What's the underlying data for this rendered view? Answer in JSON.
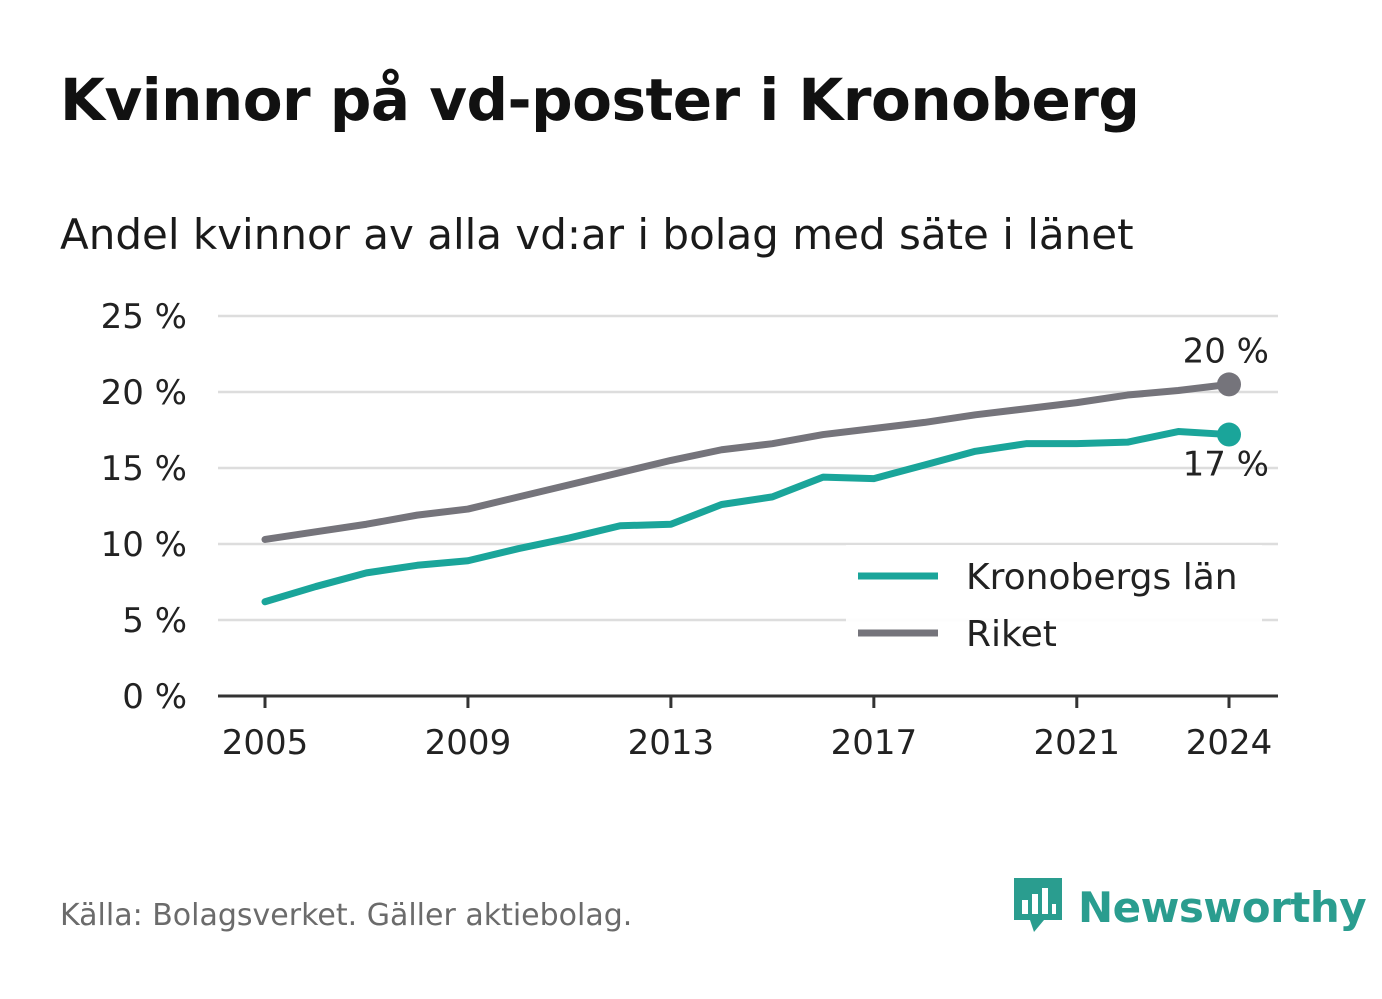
{
  "title": "Kvinnor på vd-poster i Kronoberg",
  "subtitle": "Andel kvinnor av alla vd:ar i bolag med säte i länet",
  "source": "Källa: Bolagsverket. Gäller aktiebolag.",
  "brand": {
    "name": "Newsworthy",
    "icon": "newsworthy-logo-icon"
  },
  "colors": {
    "kronoberg": "#1aa59a",
    "riket": "#75747b",
    "grid": "#dddddd",
    "axis": "#333333"
  },
  "chart_data": {
    "type": "line",
    "title": "Kvinnor på vd-poster i Kronoberg",
    "subtitle": "Andel kvinnor av alla vd:ar i bolag med säte i länet",
    "x": [
      2005,
      2006,
      2007,
      2008,
      2009,
      2010,
      2011,
      2012,
      2013,
      2014,
      2015,
      2016,
      2017,
      2018,
      2019,
      2020,
      2021,
      2022,
      2023,
      2024
    ],
    "x_ticks": [
      2005,
      2009,
      2013,
      2017,
      2021,
      2024
    ],
    "y_ticks": [
      0,
      5,
      10,
      15,
      20,
      25
    ],
    "y_tick_labels": [
      "0 %",
      "5 %",
      "10 %",
      "15 %",
      "20 %",
      "25 %"
    ],
    "ylim": [
      0,
      25
    ],
    "grid": true,
    "legend_position": "bottom-right",
    "series": [
      {
        "name": "Kronobergs län",
        "color": "#1aa59a",
        "values": [
          6.2,
          7.2,
          8.1,
          8.6,
          8.9,
          9.7,
          10.4,
          11.2,
          11.3,
          12.6,
          13.1,
          14.4,
          14.3,
          15.2,
          16.1,
          16.6,
          16.6,
          16.7,
          17.4,
          17.2
        ],
        "end_label": "17 %"
      },
      {
        "name": "Riket",
        "color": "#75747b",
        "values": [
          10.3,
          10.8,
          11.3,
          11.9,
          12.3,
          13.1,
          13.9,
          14.7,
          15.5,
          16.2,
          16.6,
          17.2,
          17.6,
          18.0,
          18.5,
          18.9,
          19.3,
          19.8,
          20.1,
          20.5
        ],
        "end_label": "20 %"
      }
    ]
  }
}
